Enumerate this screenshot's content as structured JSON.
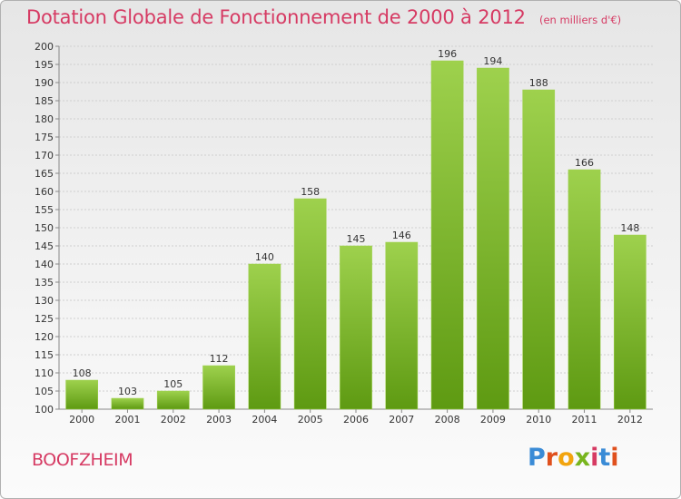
{
  "header": {
    "title": "Dotation Globale de Fonctionnement de 2000 à 2012",
    "subtitle": "(en milliers d'€)"
  },
  "footer": {
    "commune": "BOOFZHEIM",
    "logo_letters": [
      "P",
      "r",
      "o",
      "x",
      "i",
      "t",
      "i"
    ]
  },
  "colors": {
    "title": "#d63a63",
    "bar_top": "#9ed14d",
    "bar_bottom": "#5e9a12",
    "logo": [
      "#3a8bd6",
      "#e0501d",
      "#f2a40e",
      "#78b51e",
      "#d63a63",
      "#3a8bd6",
      "#e0501d"
    ]
  },
  "chart_data": {
    "type": "bar",
    "categories": [
      "2000",
      "2001",
      "2002",
      "2003",
      "2004",
      "2005",
      "2006",
      "2007",
      "2008",
      "2009",
      "2010",
      "2011",
      "2012"
    ],
    "values": [
      108,
      103,
      105,
      112,
      140,
      158,
      145,
      146,
      196,
      194,
      188,
      166,
      148
    ],
    "ylim": [
      100,
      200
    ],
    "yticks": [
      100,
      105,
      110,
      115,
      120,
      125,
      130,
      135,
      140,
      145,
      150,
      155,
      160,
      165,
      170,
      175,
      180,
      185,
      190,
      195,
      200
    ],
    "grid": true,
    "legend": "none"
  }
}
